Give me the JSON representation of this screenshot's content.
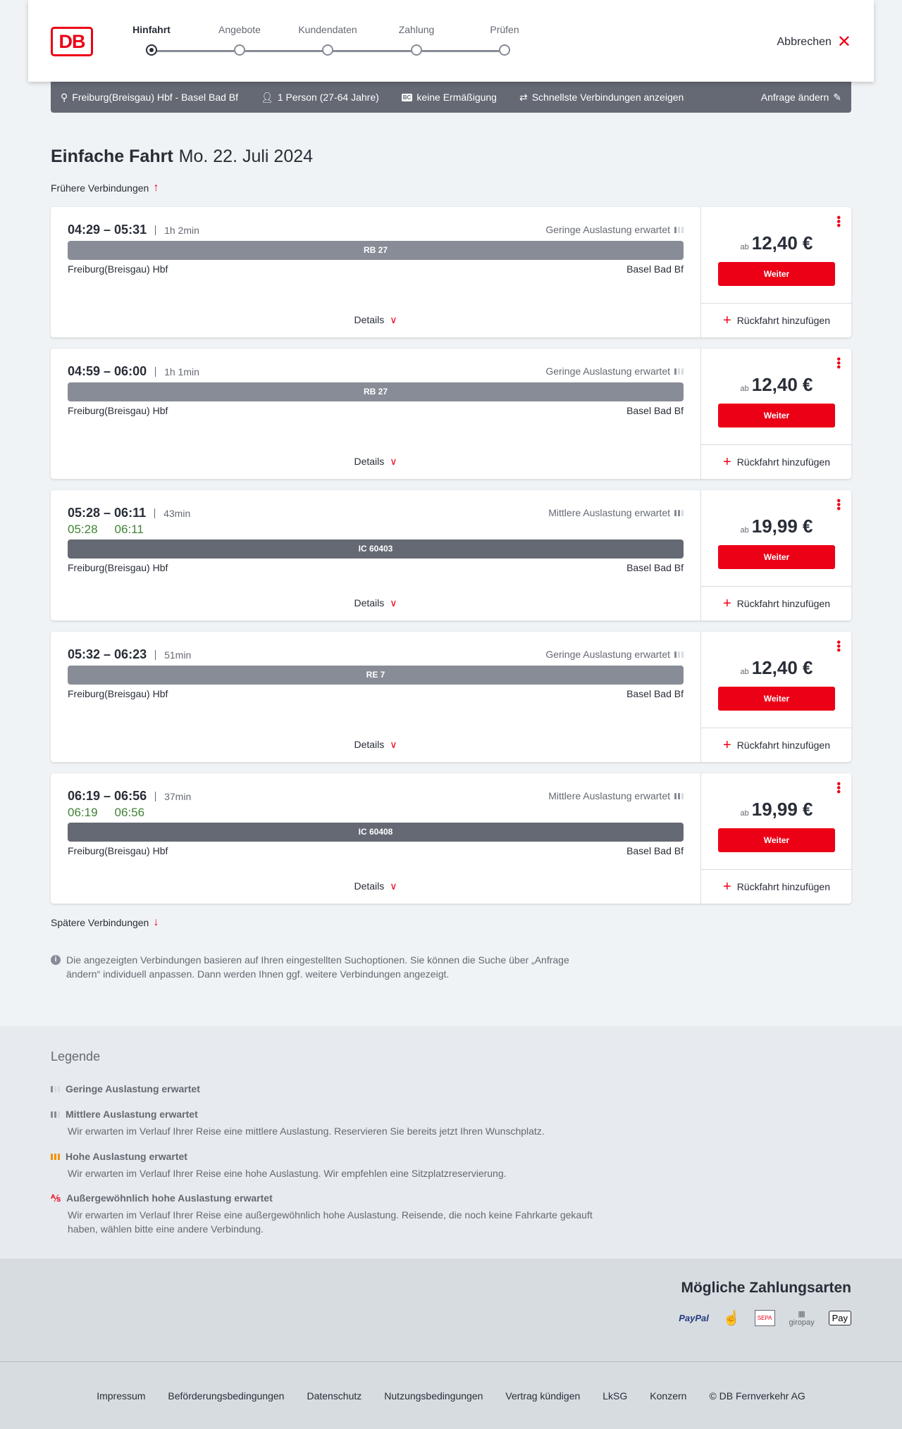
{
  "header": {
    "logo": "DB",
    "steps": [
      "Hinfahrt",
      "Angebote",
      "Kundendaten",
      "Zahlung",
      "Prüfen"
    ],
    "active_step": 0,
    "cancel": "Abbrechen"
  },
  "query": {
    "route": "Freiburg(Breisgau) Hbf - Basel Bad Bf",
    "passengers": "1 Person (27-64 Jahre)",
    "discount": "keine Ermäßigung",
    "discount_badge": "BC",
    "fastest": "Schnellste Verbindungen anzeigen",
    "edit": "Anfrage ändern"
  },
  "title": {
    "main": "Einfache Fahrt",
    "date": "Mo. 22. Juli 2024"
  },
  "earlier": "Frühere Verbindungen",
  "later": "Spätere Verbindungen",
  "labels": {
    "details": "Details",
    "ab": "ab",
    "weiter": "Weiter",
    "return": "Rückfahrt hinzufügen"
  },
  "colors": {
    "accent": "#ec0016",
    "realtime": "#408335",
    "bar_regional": "#878c96",
    "bar_ic": "#646973"
  },
  "connections": [
    {
      "times": "04:29 – 05:31",
      "duration": "1h 2min",
      "occupancy": "Geringe Auslastung erwartet",
      "level": 1,
      "train": "RB 27",
      "from": "Freiburg(Breisgau) Hbf",
      "to": "Basel Bad Bf",
      "price": "12,40 €"
    },
    {
      "times": "04:59 – 06:00",
      "duration": "1h 1min",
      "occupancy": "Geringe Auslastung erwartet",
      "level": 1,
      "train": "RB 27",
      "from": "Freiburg(Breisgau) Hbf",
      "to": "Basel Bad Bf",
      "price": "12,40 €"
    },
    {
      "times": "05:28 – 06:11",
      "duration": "43min",
      "rt_dep": "05:28",
      "rt_arr": "06:11",
      "occupancy": "Mittlere Auslastung erwartet",
      "level": 2,
      "train": "IC 60403",
      "from": "Freiburg(Breisgau) Hbf",
      "to": "Basel Bad Bf",
      "price": "19,99 €"
    },
    {
      "times": "05:32 – 06:23",
      "duration": "51min",
      "occupancy": "Geringe Auslastung erwartet",
      "level": 1,
      "train": "RE 7",
      "from": "Freiburg(Breisgau) Hbf",
      "to": "Basel Bad Bf",
      "price": "12,40 €"
    },
    {
      "times": "06:19 – 06:56",
      "duration": "37min",
      "rt_dep": "06:19",
      "rt_arr": "06:56",
      "occupancy": "Mittlere Auslastung erwartet",
      "level": 2,
      "train": "IC 60408",
      "from": "Freiburg(Breisgau) Hbf",
      "to": "Basel Bad Bf",
      "price": "19,99 €"
    }
  ],
  "info": "Die angezeigten Verbindungen basieren auf Ihren eingestellten Suchoptionen. Sie können die Suche über „Anfrage ändern“ individuell anpassen. Dann werden Ihnen ggf. weitere Verbindungen angezeigt.",
  "legend": {
    "title": "Legende",
    "items": [
      {
        "label": "Geringe Auslastung erwartet",
        "text": ""
      },
      {
        "label": "Mittlere Auslastung erwartet",
        "text": "Wir erwarten im Verlauf Ihrer Reise eine mittlere Auslastung. Reservieren Sie bereits jetzt Ihren Wunschplatz."
      },
      {
        "label": "Hohe Auslastung erwartet",
        "text": "Wir erwarten im Verlauf Ihrer Reise eine hohe Auslastung. Wir empfehlen eine Sitzplatzreservierung."
      },
      {
        "label": "Außergewöhnlich hohe Auslastung erwartet",
        "text": "Wir erwarten im Verlauf Ihrer Reise eine außergewöhnlich hohe Auslastung. Reisende, die noch keine Fahrkarte gekauft haben, wählen bitte eine andere Verbindung."
      }
    ]
  },
  "payment": {
    "title": "Mögliche Zahlungsarten",
    "methods": [
      "PayPal",
      "Kreditkarte",
      "SEPA",
      "giropay",
      "Pay"
    ]
  },
  "footer": [
    "Impressum",
    "Beförderungsbedingungen",
    "Datenschutz",
    "Nutzungsbedingungen",
    "Vertrag kündigen",
    "LkSG",
    "Konzern",
    "© DB Fernverkehr AG"
  ]
}
